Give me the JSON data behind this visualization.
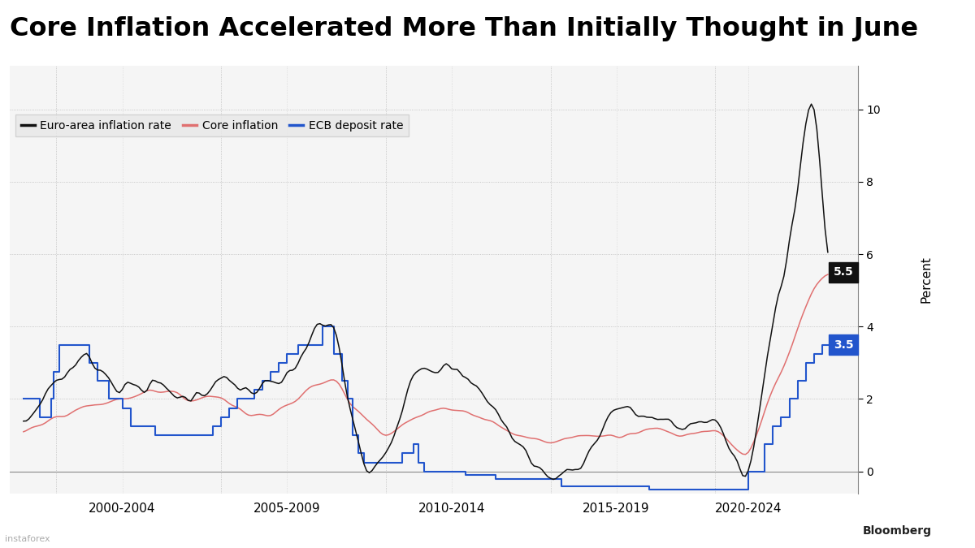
{
  "title": "Core Inflation Accelerated More Than Initially Thought in June",
  "legend_labels": [
    "Euro-area inflation rate",
    "Core inflation",
    "ECB deposit rate"
  ],
  "legend_colors": [
    "#111111",
    "#e07070",
    "#2255cc"
  ],
  "ylabel": "Percent",
  "yticks": [
    0.0,
    2.0,
    4.0,
    6.0,
    8.0,
    10.0
  ],
  "ylim": [
    -0.6,
    11.2
  ],
  "xtick_labels": [
    "2000-2004",
    "2005-2009",
    "2010-2014",
    "2015-2019",
    "2020-2024"
  ],
  "annotation_black_val": 5.5,
  "annotation_blue_val": 3.5,
  "bg_color": "#ffffff",
  "plot_bg_color": "#f5f5f5",
  "grid_color": "#aaaaaa",
  "title_fontsize": 23,
  "legend_fontsize": 10,
  "axis_fontsize": 11,
  "legend_bg": "#e8e8e8",
  "black_annot_color": "#111111",
  "blue_annot_color": "#2255cc"
}
